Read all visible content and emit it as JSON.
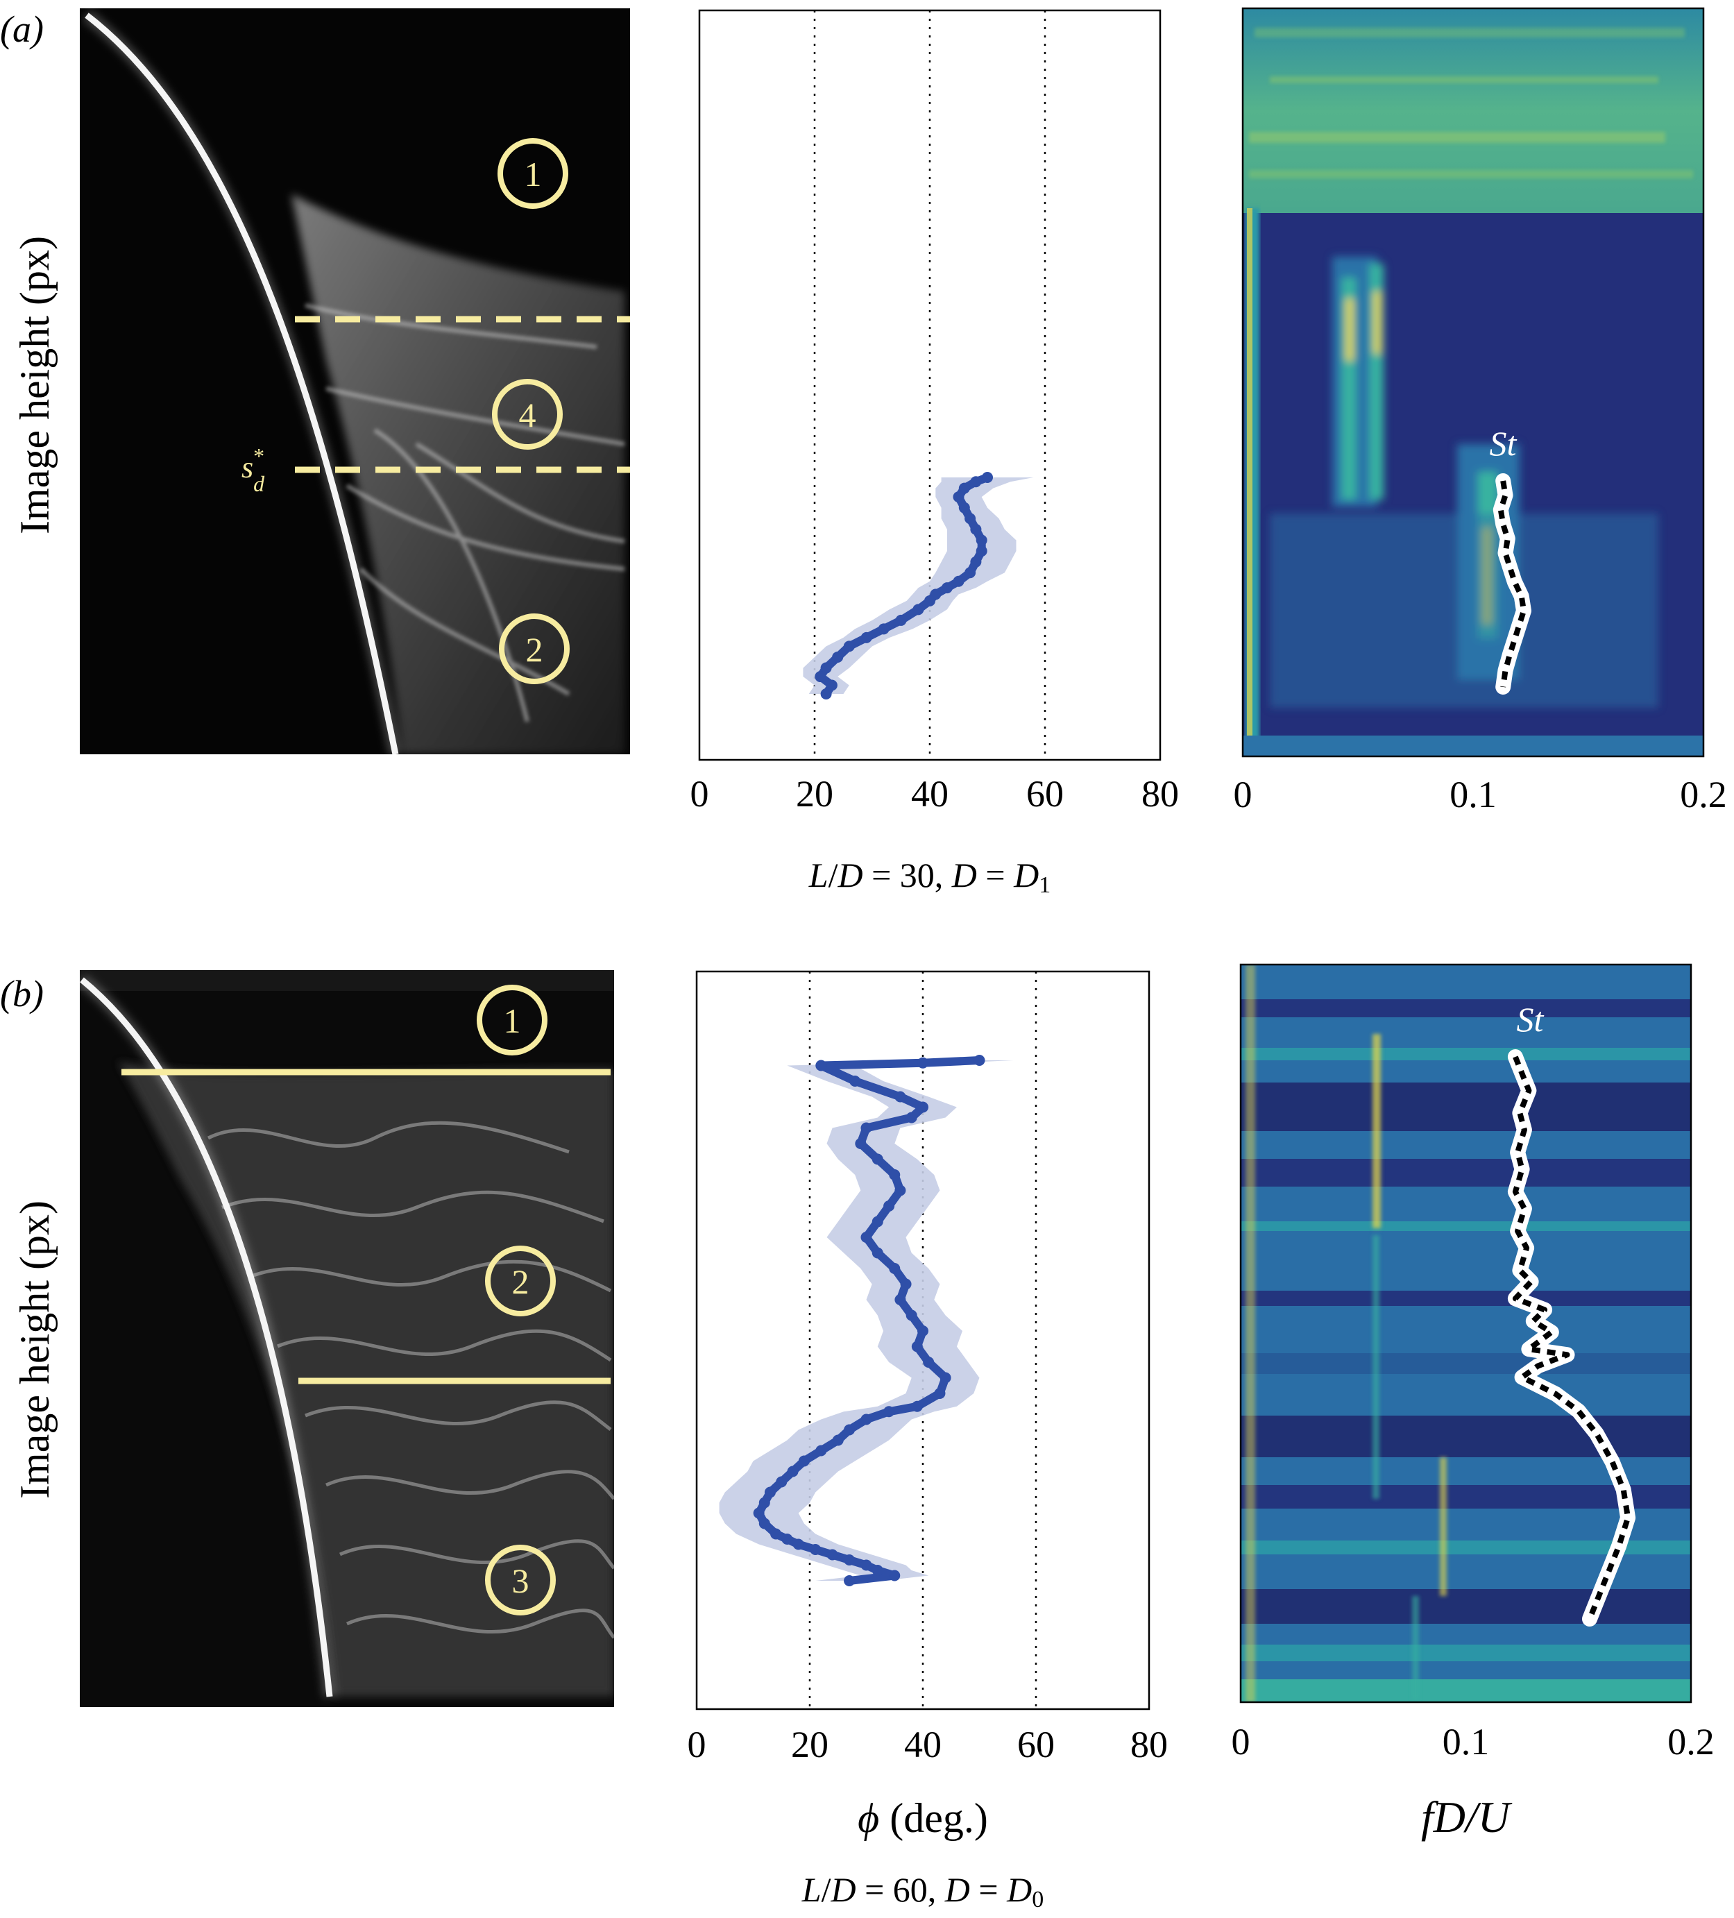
{
  "figure": {
    "rows": [
      {
        "panel_label": "(a)",
        "ylabel": "Image height (px)",
        "photo": {
          "region_labels": [
            "1",
            "4",
            "2"
          ],
          "marker_label": "s*d",
          "marker_sub": "d",
          "marker_sup": "*",
          "marker_base": "s"
        },
        "caption": "L/D = 30, D = D1",
        "caption_parts": {
          "a": "L",
          "b": "/",
          "c": "D",
          "d": " = 30, ",
          "e": "D",
          "f": " = ",
          "g": "D",
          "h": "1"
        },
        "spectrum_label": "St"
      },
      {
        "panel_label": "(b)",
        "ylabel": "Image height (px)",
        "photo": {
          "region_labels": [
            "1",
            "2",
            "3"
          ]
        },
        "caption": "L/D = 60, D = D0",
        "caption_parts": {
          "a": "L",
          "b": "/",
          "c": "D",
          "d": " = 60, ",
          "e": "D",
          "f": " = ",
          "g": "D",
          "h": "0"
        },
        "spectrum_label": "St"
      }
    ],
    "xlabel_phi": "ϕ (deg.)",
    "xlabel_phi_parts": {
      "sym": "ϕ",
      "unit": " (deg.)"
    },
    "xlabel_freq": "fD/U",
    "colors": {
      "yellow": "#f7eca0",
      "curve": "#2f4fa8",
      "band": "#c5cde6",
      "spectrum_bg": "#232f7a",
      "spectrum_mid": "#2c73a8",
      "spectrum_hi": "#2fa0a8",
      "spectrum_peak": "#e7d84a"
    }
  },
  "chart_data": [
    {
      "type": "line",
      "row": "a",
      "xlim": [
        0,
        80
      ],
      "xticks": [
        0,
        20,
        40,
        60,
        80
      ],
      "xtick_labels": [
        "0",
        "20",
        "40",
        "60",
        "80"
      ],
      "grid_x": [
        20,
        40,
        60
      ],
      "x": [
        50,
        48,
        46,
        45,
        46,
        47,
        48,
        49,
        49,
        48,
        47,
        45,
        43,
        41,
        40,
        38,
        35,
        32,
        29,
        26,
        24,
        22,
        21,
        23,
        22
      ],
      "y_norm": [
        0.0,
        0.02,
        0.05,
        0.09,
        0.14,
        0.19,
        0.24,
        0.29,
        0.34,
        0.39,
        0.44,
        0.48,
        0.51,
        0.54,
        0.57,
        0.61,
        0.66,
        0.7,
        0.74,
        0.78,
        0.83,
        0.88,
        0.92,
        0.96,
        1.0
      ],
      "band_halfwidth": [
        8,
        6,
        5,
        4,
        4,
        5,
        5,
        6,
        6,
        6,
        6,
        5,
        5,
        4,
        4,
        5,
        5,
        5,
        4,
        4,
        4,
        4,
        3,
        3,
        3
      ]
    },
    {
      "type": "line",
      "row": "b",
      "xlim": [
        0,
        80
      ],
      "xticks": [
        0,
        20,
        40,
        60,
        80
      ],
      "xtick_labels": [
        "0",
        "20",
        "40",
        "60",
        "80"
      ],
      "grid_x": [
        20,
        40,
        60
      ],
      "x": [
        50,
        40,
        22,
        28,
        36,
        40,
        38,
        30,
        29,
        32,
        35,
        36,
        34,
        32,
        30,
        32,
        35,
        37,
        36,
        38,
        40,
        39,
        41,
        44,
        43,
        39,
        34,
        30,
        27,
        25,
        22,
        19,
        17,
        15,
        13,
        12,
        11,
        12,
        14,
        16,
        18,
        21,
        24,
        27,
        30,
        32,
        35,
        27
      ],
      "y_norm": [
        0.0,
        0.005,
        0.01,
        0.04,
        0.07,
        0.09,
        0.11,
        0.13,
        0.16,
        0.19,
        0.22,
        0.25,
        0.28,
        0.31,
        0.34,
        0.37,
        0.4,
        0.43,
        0.46,
        0.49,
        0.52,
        0.55,
        0.58,
        0.61,
        0.64,
        0.665,
        0.675,
        0.69,
        0.71,
        0.73,
        0.75,
        0.77,
        0.79,
        0.81,
        0.83,
        0.85,
        0.87,
        0.89,
        0.91,
        0.92,
        0.93,
        0.94,
        0.95,
        0.96,
        0.97,
        0.98,
        0.99,
        1.0
      ],
      "band_halfwidth": [
        6,
        6,
        6,
        5,
        5,
        6,
        6,
        6,
        6,
        7,
        7,
        7,
        7,
        7,
        7,
        6,
        6,
        6,
        6,
        6,
        7,
        7,
        7,
        6,
        6,
        7,
        8,
        8,
        9,
        9,
        9,
        9,
        8,
        8,
        8,
        8,
        7,
        7,
        7,
        7,
        7,
        7,
        7,
        7,
        7,
        6,
        6,
        6
      ]
    },
    {
      "type": "heatmap",
      "row": "a",
      "xlim": [
        0,
        0.2
      ],
      "xticks": [
        0,
        0.1,
        0.2
      ],
      "xtick_labels": [
        "0",
        "0.1",
        "0.2"
      ],
      "series": [
        {
          "name": "St",
          "x": [
            0.113,
            0.114,
            0.112,
            0.113,
            0.115,
            0.114,
            0.116,
            0.118,
            0.121,
            0.122,
            0.12,
            0.118,
            0.116,
            0.114,
            0.113
          ],
          "y_norm": [
            0.0,
            0.07,
            0.14,
            0.21,
            0.28,
            0.35,
            0.42,
            0.49,
            0.56,
            0.63,
            0.7,
            0.77,
            0.84,
            0.92,
            1.0
          ]
        }
      ]
    },
    {
      "type": "heatmap",
      "row": "b",
      "xlim": [
        0,
        0.2
      ],
      "xticks": [
        0,
        0.1,
        0.2
      ],
      "xtick_labels": [
        "0",
        "0.1",
        "0.2"
      ],
      "series": [
        {
          "name": "St",
          "x": [
            0.122,
            0.125,
            0.128,
            0.124,
            0.126,
            0.123,
            0.125,
            0.122,
            0.126,
            0.123,
            0.127,
            0.124,
            0.129,
            0.122,
            0.135,
            0.13,
            0.138,
            0.128,
            0.145,
            0.132,
            0.125,
            0.14,
            0.15,
            0.158,
            0.165,
            0.17,
            0.172,
            0.168,
            0.162,
            0.155
          ],
          "y_norm": [
            0.0,
            0.03,
            0.06,
            0.1,
            0.13,
            0.17,
            0.2,
            0.24,
            0.27,
            0.31,
            0.34,
            0.38,
            0.4,
            0.43,
            0.45,
            0.47,
            0.49,
            0.52,
            0.53,
            0.55,
            0.57,
            0.6,
            0.63,
            0.67,
            0.72,
            0.77,
            0.82,
            0.87,
            0.93,
            1.0
          ]
        }
      ]
    }
  ]
}
